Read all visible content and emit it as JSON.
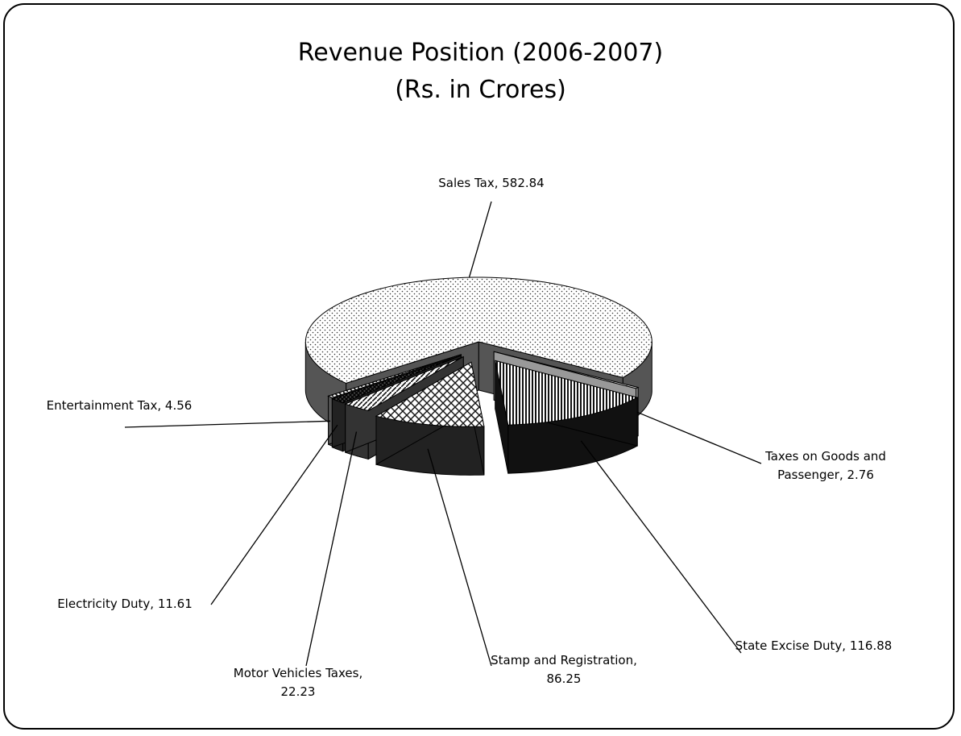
{
  "chart_data": {
    "type": "pie",
    "title": "Revenue Position (2006-2007)",
    "subtitle": "(Rs. in Crores)",
    "values": [
      582.84,
      2.76,
      116.88,
      86.25,
      22.23,
      11.61,
      4.56
    ],
    "value_labels": [
      "Sales Tax, 582.84",
      "Taxes on Goods and Passenger, 2.76",
      "State Excise Duty, 116.88",
      "Stamp and Registration, 86.25",
      "Motor Vehicles Taxes, 22.23",
      "Electricity Duty, 11.61",
      "Entertainment Tax, 4.56"
    ],
    "three_d": true
  }
}
